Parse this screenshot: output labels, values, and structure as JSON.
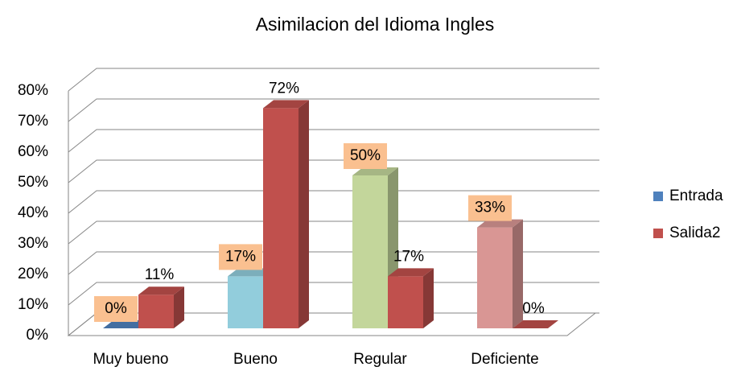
{
  "chart_data": {
    "type": "bar3d",
    "title": "Asimilacion del Idioma Ingles",
    "categories": [
      "Muy bueno",
      "Bueno",
      "Regular",
      "Deficiente"
    ],
    "series": [
      {
        "name": "Entrada",
        "color": "#4f81bd",
        "colors": [
          "#4f81bd",
          "#92cddc",
          "#c3d69b",
          "#d99694"
        ],
        "values": [
          0,
          17,
          50,
          33
        ],
        "value_labels": [
          "0%",
          "17%",
          "50%",
          "33%"
        ]
      },
      {
        "name": "Salida2",
        "color": "#c0504d",
        "values": [
          11,
          72,
          17,
          0
        ],
        "value_labels": [
          "11%",
          "72%",
          "17%",
          "0%"
        ]
      }
    ],
    "ylim": [
      0,
      80
    ],
    "yticks": [
      {
        "value": 0,
        "label": "0%"
      },
      {
        "value": 10,
        "label": "10%"
      },
      {
        "value": 20,
        "label": "20%"
      },
      {
        "value": 30,
        "label": "30%"
      },
      {
        "value": 40,
        "label": "40%"
      },
      {
        "value": 50,
        "label": "50%"
      },
      {
        "value": 60,
        "label": "60%"
      },
      {
        "value": 70,
        "label": "70%"
      },
      {
        "value": 80,
        "label": "80%"
      }
    ],
    "grid": true,
    "legend": "right"
  }
}
